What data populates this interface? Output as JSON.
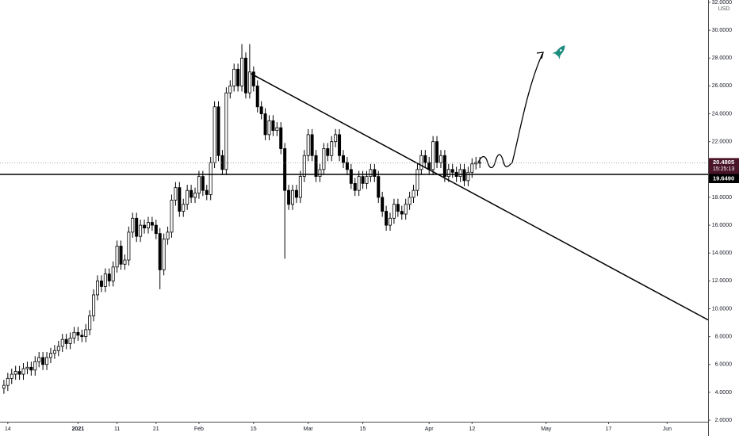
{
  "chart_data": {
    "type": "candlestick",
    "currency": "USD",
    "up_color": "#ffffff",
    "down_color": "#000000",
    "x": [
      -1,
      0,
      1,
      2,
      3,
      4,
      5,
      6,
      7,
      8,
      9,
      10,
      11,
      12,
      13,
      14,
      15,
      16,
      17,
      18,
      19,
      20,
      21,
      22,
      23,
      24,
      25,
      26,
      27,
      28,
      29,
      30,
      31,
      32,
      33,
      34,
      35,
      36,
      37,
      38,
      39,
      40,
      41,
      42,
      43,
      44,
      45,
      46,
      47,
      48,
      49,
      50,
      51,
      52,
      53,
      54,
      55,
      56,
      57,
      58,
      59,
      60,
      61,
      62,
      63,
      64,
      65,
      66,
      67,
      68,
      69,
      70,
      71,
      72,
      73,
      74,
      75,
      76,
      77,
      78,
      79,
      80,
      81,
      82,
      83,
      84,
      85,
      86,
      87,
      88,
      89,
      90,
      91,
      92,
      93,
      94,
      95,
      96,
      97,
      98,
      99,
      100,
      101,
      102,
      103,
      104,
      105,
      106,
      107,
      108,
      109,
      110,
      111,
      112,
      113,
      114,
      115,
      116,
      117,
      118,
      119,
      120,
      121
    ],
    "open": [
      4.3,
      4.5,
      5.0,
      5.3,
      5.5,
      5.3,
      5.7,
      5.8,
      5.6,
      6.2,
      6.5,
      6.0,
      6.5,
      6.8,
      7.0,
      7.3,
      7.8,
      7.5,
      7.9,
      8.3,
      8.1,
      8.0,
      8.5,
      9.5,
      11.0,
      12.0,
      11.6,
      12.5,
      12.0,
      13.0,
      14.5,
      13.2,
      13.5,
      15.5,
      16.5,
      15.2,
      16.0,
      15.8,
      16.2,
      16.0,
      15.4,
      12.8,
      15.0,
      15.5,
      17.8,
      18.7,
      17.0,
      17.5,
      18.5,
      18.0,
      18.3,
      19.5,
      18.5,
      18.2,
      20.5,
      24.5,
      21.0,
      20.0,
      25.5,
      26.0,
      27.2,
      26.0,
      28.0,
      25.5,
      27.0,
      26.0,
      24.5,
      24.0,
      22.5,
      23.5,
      22.8,
      23.0,
      21.5,
      18.5,
      17.5,
      18.5,
      18.0,
      19.5,
      21.0,
      22.5,
      21.0,
      19.5,
      20.0,
      21.5,
      21.0,
      22.0,
      22.5,
      21.0,
      20.5,
      20.0,
      19.0,
      18.5,
      19.5,
      19.0,
      19.5,
      20.0,
      19.5,
      18.0,
      17.0,
      16.0,
      16.5,
      17.5,
      17.0,
      16.8,
      17.5,
      18.0,
      18.5,
      20.0,
      21.0,
      20.5,
      20.0,
      22.0,
      20.5,
      21.0,
      19.5,
      20.0,
      19.8,
      19.5,
      20.0,
      19.2,
      19.8,
      20.4,
      20.5
    ],
    "high": [
      4.9,
      5.4,
      5.7,
      5.9,
      5.9,
      6.1,
      6.2,
      6.2,
      6.6,
      6.9,
      6.9,
      6.9,
      7.2,
      7.4,
      7.7,
      8.2,
      8.2,
      8.3,
      8.7,
      8.7,
      8.5,
      8.9,
      9.9,
      11.4,
      12.4,
      12.4,
      12.9,
      12.9,
      13.4,
      14.9,
      14.9,
      13.9,
      15.9,
      16.9,
      16.9,
      16.4,
      16.4,
      16.6,
      16.6,
      16.4,
      15.8,
      15.4,
      15.9,
      18.2,
      19.1,
      19.1,
      17.9,
      18.9,
      18.9,
      18.7,
      19.9,
      19.9,
      18.9,
      20.9,
      24.9,
      24.9,
      21.4,
      25.9,
      26.4,
      27.6,
      27.6,
      29.0,
      28.4,
      29.0,
      27.4,
      26.4,
      24.9,
      24.4,
      23.9,
      23.9,
      23.4,
      23.4,
      21.9,
      18.9,
      18.9,
      18.9,
      19.9,
      21.4,
      22.9,
      22.9,
      21.4,
      20.4,
      21.9,
      21.9,
      22.4,
      22.9,
      22.9,
      21.4,
      20.9,
      20.4,
      19.4,
      19.9,
      19.9,
      19.9,
      20.4,
      20.4,
      19.9,
      18.4,
      17.4,
      16.9,
      17.9,
      17.9,
      17.4,
      17.9,
      18.4,
      18.9,
      20.4,
      21.4,
      21.4,
      20.9,
      22.4,
      22.4,
      21.4,
      21.4,
      20.4,
      20.4,
      20.2,
      20.4,
      20.4,
      20.2,
      20.8,
      20.9,
      20.9
    ],
    "low": [
      3.9,
      4.1,
      4.6,
      4.9,
      4.9,
      4.9,
      5.3,
      5.2,
      5.2,
      5.8,
      5.6,
      5.6,
      6.1,
      6.4,
      6.6,
      6.9,
      7.1,
      7.1,
      7.5,
      7.7,
      7.6,
      7.6,
      8.1,
      9.1,
      10.6,
      11.2,
      11.2,
      11.6,
      11.6,
      12.6,
      12.8,
      12.8,
      13.1,
      15.1,
      14.8,
      14.8,
      15.4,
      15.4,
      15.6,
      15.0,
      11.4,
      12.4,
      14.6,
      15.1,
      17.4,
      16.6,
      16.6,
      17.1,
      17.6,
      17.6,
      17.9,
      18.1,
      17.8,
      17.8,
      20.1,
      20.6,
      19.6,
      19.6,
      25.1,
      25.6,
      25.6,
      25.6,
      25.1,
      25.1,
      25.6,
      24.1,
      23.6,
      22.1,
      22.1,
      22.4,
      22.4,
      21.1,
      13.6,
      17.1,
      17.1,
      17.6,
      17.6,
      19.1,
      20.6,
      20.6,
      19.1,
      19.1,
      19.6,
      20.6,
      20.6,
      21.6,
      20.6,
      20.1,
      19.6,
      18.6,
      18.1,
      18.1,
      18.6,
      18.6,
      19.1,
      19.1,
      17.6,
      16.6,
      15.6,
      15.6,
      16.1,
      16.6,
      16.4,
      16.4,
      17.1,
      17.6,
      18.1,
      19.6,
      20.1,
      19.6,
      19.6,
      20.1,
      20.1,
      19.1,
      19.1,
      19.4,
      19.1,
      19.1,
      18.8,
      18.8,
      19.4,
      20.0,
      20.1
    ],
    "close": [
      4.5,
      5.0,
      5.3,
      5.5,
      5.3,
      5.7,
      5.8,
      5.6,
      6.2,
      6.5,
      6.0,
      6.5,
      6.8,
      7.0,
      7.3,
      7.8,
      7.5,
      7.9,
      8.3,
      8.1,
      8.0,
      8.5,
      9.5,
      11.0,
      12.0,
      11.6,
      12.5,
      12.0,
      13.0,
      14.5,
      13.2,
      13.5,
      15.5,
      16.5,
      15.2,
      16.0,
      15.8,
      16.2,
      16.0,
      15.4,
      12.8,
      15.0,
      15.5,
      17.8,
      18.7,
      17.0,
      17.5,
      18.5,
      18.0,
      18.3,
      19.5,
      18.5,
      18.2,
      20.5,
      24.5,
      21.0,
      20.0,
      25.5,
      26.0,
      27.2,
      26.0,
      28.0,
      25.5,
      27.0,
      26.0,
      24.5,
      24.0,
      22.5,
      23.5,
      22.8,
      23.0,
      21.5,
      18.5,
      17.5,
      18.5,
      18.0,
      19.5,
      21.0,
      22.5,
      21.0,
      19.5,
      20.0,
      21.5,
      21.0,
      22.0,
      22.5,
      21.0,
      20.5,
      20.0,
      19.0,
      18.5,
      19.5,
      19.0,
      19.5,
      20.0,
      19.5,
      18.0,
      17.0,
      16.0,
      16.5,
      17.5,
      17.0,
      16.8,
      17.5,
      18.0,
      18.5,
      20.0,
      21.0,
      20.5,
      20.0,
      22.0,
      20.5,
      21.0,
      19.5,
      20.0,
      19.8,
      19.5,
      20.0,
      19.2,
      19.8,
      20.4,
      20.5,
      20.4805
    ],
    "xlim": [
      -2,
      179.5
    ],
    "ylim": [
      1.89,
      32.17
    ],
    "xticks": [
      {
        "value": 0,
        "label": "14"
      },
      {
        "value": 18,
        "label": "2021"
      },
      {
        "value": 28,
        "label": "11"
      },
      {
        "value": 38,
        "label": "21"
      },
      {
        "value": 49,
        "label": "Feb"
      },
      {
        "value": 63,
        "label": "15"
      },
      {
        "value": 77,
        "label": "Mar"
      },
      {
        "value": 91,
        "label": "15"
      },
      {
        "value": 108,
        "label": "Apr"
      },
      {
        "value": 119,
        "label": "12"
      },
      {
        "value": 138,
        "label": "May"
      },
      {
        "value": 154,
        "label": "17"
      },
      {
        "value": 169,
        "label": "Jun"
      }
    ],
    "yticks": [
      {
        "value": 2,
        "label": "2.0000"
      },
      {
        "value": 4,
        "label": "4.0000"
      },
      {
        "value": 6,
        "label": "6.0000"
      },
      {
        "value": 8,
        "label": "8.0000"
      },
      {
        "value": 10,
        "label": "10.0000"
      },
      {
        "value": 12,
        "label": "12.0000"
      },
      {
        "value": 14,
        "label": "14.0000"
      },
      {
        "value": 16,
        "label": "16.0000"
      },
      {
        "value": 18,
        "label": "18.0000"
      },
      {
        "value": 22,
        "label": "22.0000"
      },
      {
        "value": 24,
        "label": "24.0000"
      },
      {
        "value": 26,
        "label": "26.0000"
      },
      {
        "value": 28,
        "label": "28.0000"
      },
      {
        "value": 30,
        "label": "30.0000"
      },
      {
        "value": 32,
        "label": "32.0000"
      }
    ],
    "hline": {
      "value": 19.649,
      "label": "19.6490",
      "color": "#000000"
    },
    "last_price": {
      "value": 20.4805,
      "label": "20.4805",
      "countdown": "15:25:13",
      "color": "#4a1528"
    },
    "trendline": {
      "x": [
        62.2,
        179.5
      ],
      "y": [
        26.9,
        9.2
      ],
      "color": "#000000"
    }
  }
}
